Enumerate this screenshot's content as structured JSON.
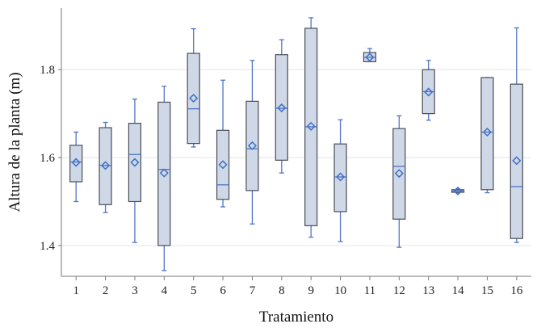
{
  "chart_data": {
    "type": "boxplot",
    "xlabel": "Tratamiento",
    "ylabel": "Altura de la planta (m)",
    "ylim": [
      1.33,
      1.94
    ],
    "yticks": [
      1.4,
      1.6,
      1.8
    ],
    "ytick_labels": [
      "1.4",
      "1.6",
      "1.8"
    ],
    "grid": "horizontal",
    "colors": {
      "box_fill": "#cfd8e6",
      "box_stroke": "#4a4f59",
      "whisker": "#4d72c4",
      "mean_marker": "#3f6fc8",
      "grid": "#e6e6e6",
      "axis": "#777777"
    },
    "categories": [
      "1",
      "2",
      "3",
      "4",
      "5",
      "6",
      "7",
      "8",
      "9",
      "10",
      "11",
      "12",
      "13",
      "14",
      "15",
      "16"
    ],
    "boxes": [
      {
        "min": 1.5,
        "q1": 1.545,
        "median": 1.59,
        "q3": 1.628,
        "max": 1.658,
        "mean": 1.589
      },
      {
        "min": 1.475,
        "q1": 1.493,
        "median": 1.582,
        "q3": 1.668,
        "max": 1.68,
        "mean": 1.582
      },
      {
        "min": 1.407,
        "q1": 1.5,
        "median": 1.607,
        "q3": 1.678,
        "max": 1.733,
        "mean": 1.589
      },
      {
        "min": 1.343,
        "q1": 1.4,
        "median": 1.573,
        "q3": 1.726,
        "max": 1.762,
        "mean": 1.565
      },
      {
        "min": 1.624,
        "q1": 1.632,
        "median": 1.711,
        "q3": 1.837,
        "max": 1.893,
        "mean": 1.735
      },
      {
        "min": 1.488,
        "q1": 1.505,
        "median": 1.538,
        "q3": 1.662,
        "max": 1.776,
        "mean": 1.584
      },
      {
        "min": 1.449,
        "q1": 1.525,
        "median": 1.62,
        "q3": 1.728,
        "max": 1.821,
        "mean": 1.627
      },
      {
        "min": 1.565,
        "q1": 1.594,
        "median": 1.712,
        "q3": 1.834,
        "max": 1.868,
        "mean": 1.713
      },
      {
        "min": 1.419,
        "q1": 1.445,
        "median": 1.67,
        "q3": 1.894,
        "max": 1.918,
        "mean": 1.671
      },
      {
        "min": 1.409,
        "q1": 1.477,
        "median": 1.556,
        "q3": 1.631,
        "max": 1.686,
        "mean": 1.556
      },
      {
        "min": 1.818,
        "q1": 1.818,
        "median": 1.828,
        "q3": 1.839,
        "max": 1.848,
        "mean": 1.828
      },
      {
        "min": 1.396,
        "q1": 1.46,
        "median": 1.58,
        "q3": 1.666,
        "max": 1.695,
        "mean": 1.564
      },
      {
        "min": 1.685,
        "q1": 1.7,
        "median": 1.75,
        "q3": 1.8,
        "max": 1.821,
        "mean": 1.749
      },
      {
        "min": 1.52,
        "q1": 1.521,
        "median": 1.524,
        "q3": 1.527,
        "max": 1.528,
        "mean": 1.524
      },
      {
        "min": 1.52,
        "q1": 1.527,
        "median": 1.658,
        "q3": 1.782,
        "max": 1.782,
        "mean": 1.658
      },
      {
        "min": 1.407,
        "q1": 1.416,
        "median": 1.534,
        "q3": 1.767,
        "max": 1.895,
        "mean": 1.593
      }
    ]
  }
}
